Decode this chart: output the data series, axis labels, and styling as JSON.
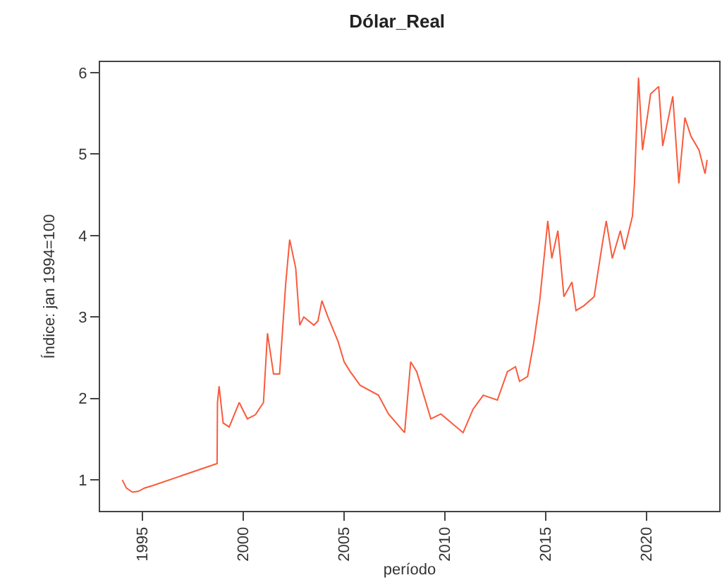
{
  "chart_data": {
    "type": "line",
    "title": "Dólar_Real",
    "xlabel": "período",
    "ylabel": "Índice: jan 1994=100",
    "xlim": [
      1992.9,
      2023.6
    ],
    "xticks": [
      1995,
      2000,
      2005,
      2010,
      2015,
      2020
    ],
    "ylim": [
      0.62,
      6.13
    ],
    "yticks": [
      1,
      2,
      3,
      4,
      5,
      6
    ],
    "series": [
      {
        "color": "#fa5a3c",
        "x": [
          1994.0,
          1994.2,
          1994.5,
          1994.8,
          1995.1,
          1995.5,
          1998.7,
          1998.72,
          1998.8,
          1999.0,
          1999.3,
          1999.8,
          2000.2,
          2000.6,
          2001.0,
          2001.2,
          2001.5,
          2001.8,
          2002.1,
          2002.3,
          2002.6,
          2002.8,
          2003.0,
          2003.5,
          2003.7,
          2003.9,
          2004.2,
          2004.7,
          2005.0,
          2005.3,
          2005.8,
          2006.7,
          2007.2,
          2008.0,
          2008.3,
          2008.6,
          2009.3,
          2009.8,
          2010.9,
          2011.4,
          2011.9,
          2012.6,
          2013.1,
          2013.5,
          2013.7,
          2014.1,
          2014.4,
          2014.7,
          2015.1,
          2015.3,
          2015.6,
          2015.9,
          2016.3,
          2016.5,
          2016.9,
          2017.4,
          2017.8,
          2018.0,
          2018.3,
          2018.7,
          2018.9,
          2019.3,
          2019.4,
          2019.6,
          2019.8,
          2020.2,
          2020.6,
          2020.8,
          2021.3,
          2021.6,
          2021.9,
          2022.2,
          2022.6,
          2022.9,
          2023.0
        ],
        "values": [
          1.0,
          0.9,
          0.85,
          0.86,
          0.9,
          0.93,
          1.2,
          1.95,
          2.15,
          1.7,
          1.65,
          1.95,
          1.75,
          1.8,
          1.95,
          2.8,
          2.3,
          2.3,
          3.4,
          3.95,
          3.6,
          2.9,
          3.0,
          2.9,
          2.95,
          3.2,
          3.0,
          2.7,
          2.45,
          2.33,
          2.16,
          2.04,
          1.81,
          1.58,
          2.45,
          2.33,
          1.75,
          1.81,
          1.58,
          1.87,
          2.04,
          1.98,
          2.33,
          2.39,
          2.21,
          2.27,
          2.68,
          3.2,
          4.18,
          3.72,
          4.06,
          3.25,
          3.43,
          3.08,
          3.14,
          3.25,
          3.89,
          4.18,
          3.72,
          4.06,
          3.83,
          4.24,
          4.64,
          5.94,
          5.05,
          5.74,
          5.83,
          5.1,
          5.71,
          4.64,
          5.45,
          5.22,
          5.05,
          4.76,
          4.93
        ]
      }
    ]
  }
}
